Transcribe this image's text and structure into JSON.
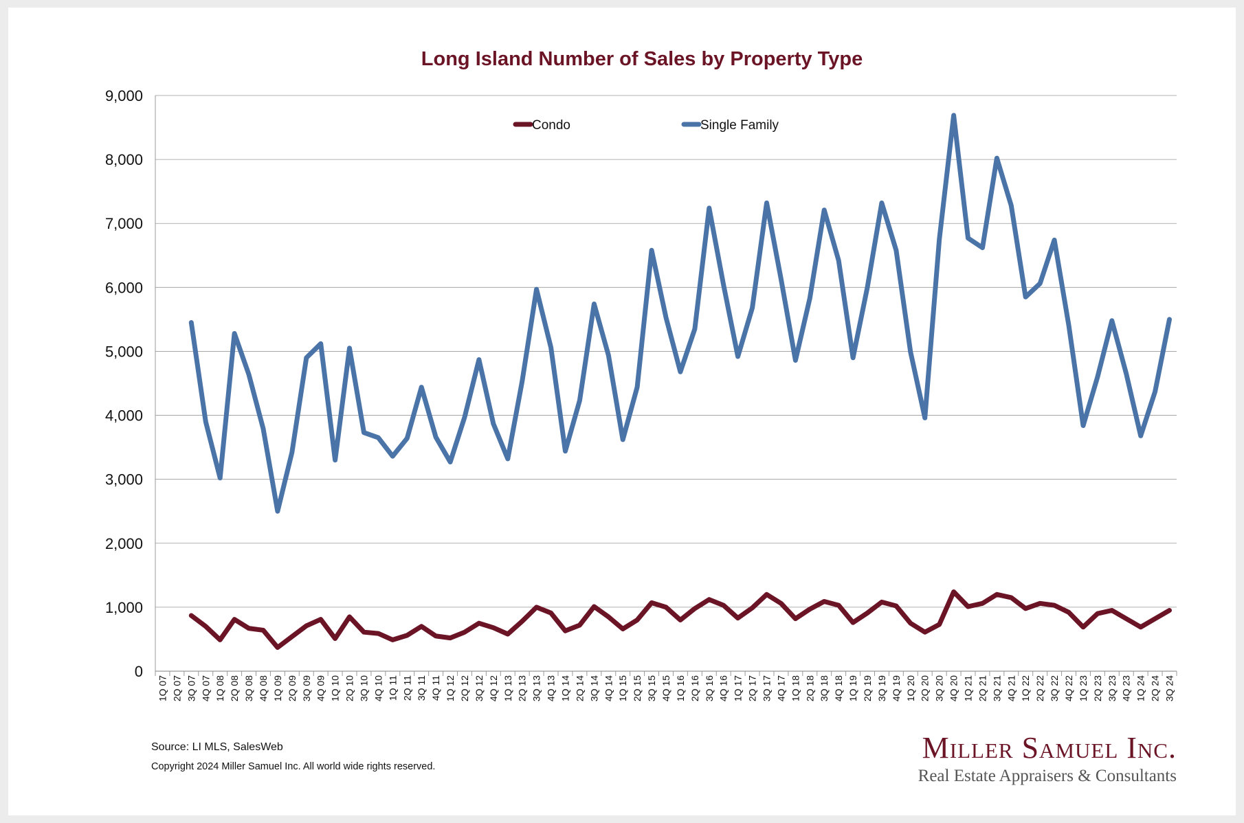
{
  "colors": {
    "condo": "#6a1426",
    "single_family": "#4a74a8",
    "title": "#6a1426",
    "grid": "#999999"
  },
  "footer": {
    "source": "Source:  LI MLS, SalesWeb",
    "copyright": "Copyright 2024 Miller Samuel Inc.  All world wide rights reserved."
  },
  "logo": {
    "name": "Miller Samuel Inc.",
    "tagline": "Real Estate Appraisers & Consultants"
  },
  "chart_data": {
    "type": "line",
    "title": "Long Island Number of Sales by Property Type",
    "xlabel": "",
    "ylabel": "",
    "ylim": [
      0,
      9000
    ],
    "yticks": [
      0,
      1000,
      2000,
      3000,
      4000,
      5000,
      6000,
      7000,
      8000,
      9000
    ],
    "ytick_labels": [
      "0",
      "1,000",
      "2,000",
      "3,000",
      "4,000",
      "5,000",
      "6,000",
      "7,000",
      "8,000",
      "9,000"
    ],
    "grid": true,
    "legend": "top-center",
    "categories": [
      "1Q 07",
      "2Q 07",
      "3Q 07",
      "4Q 07",
      "1Q 08",
      "2Q 08",
      "3Q 08",
      "4Q 08",
      "1Q 09",
      "2Q 09",
      "3Q 09",
      "4Q 09",
      "1Q 10",
      "2Q 10",
      "3Q 10",
      "4Q 10",
      "1Q 11",
      "2Q 11",
      "3Q 11",
      "4Q 11",
      "1Q 12",
      "2Q 12",
      "3Q 12",
      "4Q 12",
      "1Q 13",
      "2Q 13",
      "3Q 13",
      "4Q 13",
      "1Q 14",
      "2Q 14",
      "3Q 14",
      "4Q 14",
      "1Q 15",
      "2Q 15",
      "3Q 15",
      "4Q 15",
      "1Q 16",
      "2Q 16",
      "3Q 16",
      "4Q 16",
      "1Q 17",
      "2Q 17",
      "3Q 17",
      "4Q 17",
      "1Q 18",
      "2Q 18",
      "3Q 18",
      "4Q 18",
      "1Q 19",
      "2Q 19",
      "3Q 19",
      "4Q 19",
      "1Q 20",
      "2Q 20",
      "3Q 20",
      "4Q 20",
      "1Q 21",
      "2Q 21",
      "3Q 21",
      "4Q 21",
      "1Q 22",
      "2Q 22",
      "3Q 22",
      "4Q 22",
      "1Q 23",
      "2Q 23",
      "3Q 23",
      "4Q 23",
      "1Q 24",
      "2Q 24",
      "3Q 24"
    ],
    "series": [
      {
        "name": "Condo",
        "color": "#6a1426",
        "values": [
          null,
          null,
          870,
          700,
          490,
          810,
          670,
          640,
          370,
          540,
          710,
          810,
          510,
          850,
          610,
          590,
          490,
          560,
          700,
          550,
          520,
          610,
          750,
          680,
          580,
          780,
          1000,
          910,
          630,
          720,
          1010,
          850,
          660,
          800,
          1070,
          1000,
          800,
          980,
          1120,
          1030,
          830,
          990,
          1200,
          1060,
          820,
          970,
          1090,
          1030,
          760,
          910,
          1080,
          1020,
          750,
          610,
          730,
          1240,
          1010,
          1060,
          1200,
          1150,
          980,
          1060,
          1030,
          920,
          690,
          900,
          950,
          820,
          690,
          820,
          950
        ]
      },
      {
        "name": "Single Family",
        "color": "#4a74a8",
        "values": [
          null,
          null,
          5450,
          3900,
          3020,
          5280,
          4640,
          3790,
          2500,
          3420,
          4900,
          5120,
          3300,
          5050,
          3730,
          3650,
          3360,
          3640,
          4440,
          3660,
          3270,
          3970,
          4870,
          3870,
          3320,
          4530,
          5970,
          5060,
          3440,
          4230,
          5740,
          4940,
          3620,
          4440,
          6580,
          5530,
          4680,
          5350,
          7240,
          6040,
          4920,
          5680,
          7320,
          6130,
          4860,
          5830,
          7210,
          6420,
          4900,
          6000,
          7320,
          6580,
          4990,
          3960,
          6750,
          8690,
          6770,
          6620,
          8020,
          7280,
          5850,
          6060,
          6740,
          5410,
          3840,
          4600,
          5480,
          4650,
          3680,
          4370,
          5500
        ]
      }
    ]
  }
}
